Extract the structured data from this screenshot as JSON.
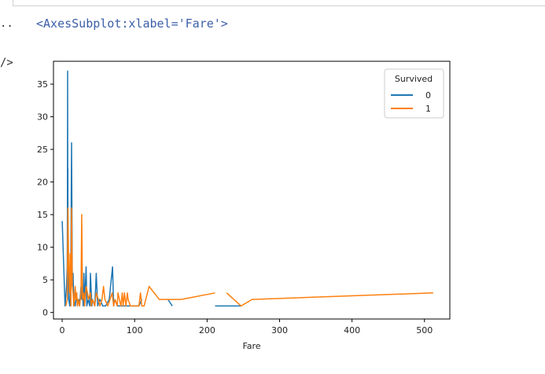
{
  "notebook": {
    "out_prompt": "..",
    "img_prompt": "/>",
    "output_repr": "<AxesSubplot:xlabel='Fare'>"
  },
  "chart_data": {
    "type": "line",
    "xlabel": "Fare",
    "ylabel": "",
    "title": "",
    "xlim": [
      -12,
      535
    ],
    "ylim": [
      -1,
      38.5
    ],
    "xticks": [
      0,
      100,
      200,
      300,
      400,
      500
    ],
    "yticks": [
      0,
      5,
      10,
      15,
      20,
      25,
      30,
      35
    ],
    "grid": false,
    "legend": {
      "title": "Survived",
      "location": "upper-right"
    },
    "series": [
      {
        "name": "0",
        "color": "#1f77b4",
        "segments": [
          [
            [
              0,
              14
            ],
            [
              4,
              1
            ],
            [
              6,
              4
            ],
            [
              7,
              7
            ],
            [
              7.25,
              15
            ],
            [
              7.5,
              37
            ],
            [
              7.75,
              10
            ],
            [
              7.9,
              22
            ],
            [
              8.05,
              6
            ],
            [
              9,
              2
            ],
            [
              10.5,
              1
            ],
            [
              12,
              8
            ],
            [
              13,
              26
            ],
            [
              14,
              4
            ],
            [
              15,
              6
            ],
            [
              16,
              2
            ],
            [
              18,
              1
            ],
            [
              20,
              3
            ],
            [
              21,
              1
            ],
            [
              23,
              2
            ],
            [
              24,
              1
            ],
            [
              26,
              4
            ],
            [
              27,
              2
            ],
            [
              28,
              3
            ],
            [
              29,
              1
            ],
            [
              30,
              6
            ],
            [
              31,
              1
            ],
            [
              33,
              7
            ],
            [
              34,
              1
            ],
            [
              36,
              2
            ],
            [
              38,
              1
            ],
            [
              39,
              6
            ],
            [
              41,
              1
            ],
            [
              42,
              2
            ],
            [
              45,
              1
            ],
            [
              47,
              6
            ],
            [
              49,
              1
            ],
            [
              52,
              2
            ],
            [
              56,
              1
            ],
            [
              60,
              1
            ],
            [
              65,
              2
            ],
            [
              69.5,
              7
            ],
            [
              71,
              1
            ],
            [
              73,
              2
            ],
            [
              76,
              1
            ],
            [
              79,
              1
            ],
            [
              84,
              1
            ],
            [
              90,
              1
            ],
            [
              106,
              1
            ],
            [
              110,
              2
            ]
          ],
          [
            [
              146,
              2
            ],
            [
              152,
              1
            ]
          ],
          [
            [
              211,
              1
            ],
            [
              247,
              1
            ]
          ]
        ]
      },
      {
        "name": "1",
        "color": "#ff7f0e",
        "segments": [
          [
            [
              5,
              1
            ],
            [
              7,
              2
            ],
            [
              8,
              16
            ],
            [
              9,
              7
            ],
            [
              10,
              3
            ],
            [
              11,
              9
            ],
            [
              12,
              1
            ],
            [
              13,
              16
            ],
            [
              14,
              4
            ],
            [
              15,
              3
            ],
            [
              16,
              1
            ],
            [
              17,
              2
            ],
            [
              18,
              4
            ],
            [
              19,
              2
            ],
            [
              20,
              3
            ],
            [
              21,
              1
            ],
            [
              22,
              2
            ],
            [
              24,
              1
            ],
            [
              26,
              3
            ],
            [
              27,
              15
            ],
            [
              28,
              2
            ],
            [
              30,
              3
            ],
            [
              31,
              1
            ],
            [
              33,
              4
            ],
            [
              35,
              3
            ],
            [
              36,
              2
            ],
            [
              39,
              3
            ],
            [
              40,
              1
            ],
            [
              42,
              2
            ],
            [
              45,
              1
            ],
            [
              47,
              3
            ],
            [
              50,
              2
            ],
            [
              52,
              1
            ],
            [
              55,
              2
            ],
            [
              57,
              4
            ],
            [
              59,
              2
            ],
            [
              63,
              1
            ],
            [
              66,
              2
            ],
            [
              69,
              3
            ],
            [
              71,
              1
            ],
            [
              73,
              2
            ],
            [
              76,
              1
            ],
            [
              77,
              3
            ],
            [
              79,
              2
            ],
            [
              81,
              1
            ],
            [
              83,
              3
            ],
            [
              84,
              1
            ],
            [
              86,
              3
            ],
            [
              88,
              1
            ],
            [
              90,
              3
            ],
            [
              91,
              2
            ],
            [
              94,
              1
            ],
            [
              99,
              1
            ],
            [
              106,
              1
            ],
            [
              108,
              3
            ],
            [
              110,
              1
            ],
            [
              113,
              1
            ],
            [
              120,
              4
            ],
            [
              134,
              2
            ],
            [
              146,
              2
            ],
            [
              153,
              2
            ],
            [
              164,
              2
            ],
            [
              211,
              3
            ]
          ],
          [
            [
              227,
              3
            ],
            [
              247,
              1
            ],
            [
              262,
              2
            ],
            [
              512,
              3
            ]
          ]
        ]
      }
    ]
  }
}
